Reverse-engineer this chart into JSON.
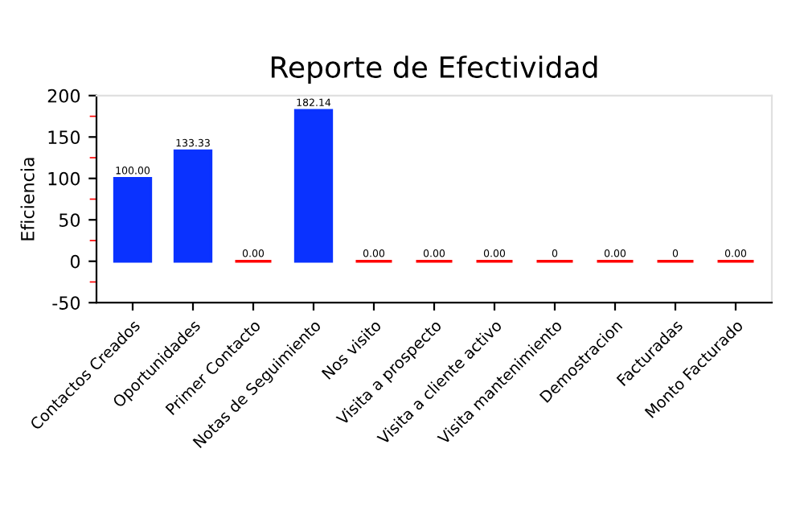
{
  "chart_data": {
    "type": "bar",
    "title": "Reporte de Efectividad",
    "ylabel": "Eficiencia",
    "categories": [
      "Contactos Creados",
      "Oportunidades",
      "Primer Contacto",
      "Notas de Seguimiento",
      "Nos visito",
      "Visita a prospecto",
      "Visita a cliente activo",
      "Visita mantenimiento",
      "Demostracion",
      "Facturadas",
      "Monto Facturado"
    ],
    "values": [
      100,
      133.33,
      0,
      182.14,
      0,
      0,
      0,
      0,
      0,
      0,
      0
    ],
    "colors": [
      "#0a32ff",
      "#0a32ff",
      "#ff0000",
      "#0a32ff",
      "#ff0000",
      "#ff0000",
      "#ff0000",
      "#ff0000",
      "#ff0000",
      "#ff0000",
      "#ff0000"
    ],
    "value_labels": [
      "100.00",
      "133.33",
      "0.00",
      "182.14",
      "0.00",
      "0.00",
      "0.00",
      "0",
      "0.00",
      "0",
      "0.00"
    ],
    "ylim": [
      -50,
      200
    ],
    "yticks": [
      -50,
      0,
      50,
      100,
      150,
      200
    ],
    "grid": false,
    "legend": false
  }
}
